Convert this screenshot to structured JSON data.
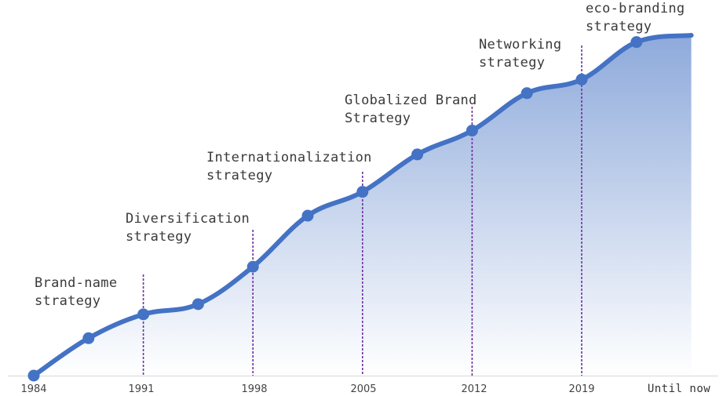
{
  "chart_data": {
    "type": "area",
    "title": "",
    "xlabel": "",
    "ylabel": "",
    "colors": {
      "line": "#4472c4",
      "fill_top": "#8eaadb",
      "fill_bottom": "#ffffff",
      "marker_line": "#7030a0",
      "axis": "#d9d9d9"
    },
    "x_ticks": [
      "1984",
      "1991",
      "1998",
      "2005",
      "2012",
      "2019",
      "Until now"
    ],
    "points": [
      {
        "x": 1984,
        "y": 0
      },
      {
        "x": 1987.5,
        "y": 11
      },
      {
        "x": 1991,
        "y": 18
      },
      {
        "x": 1994.5,
        "y": 21
      },
      {
        "x": 1998,
        "y": 32
      },
      {
        "x": 2001.5,
        "y": 47
      },
      {
        "x": 2005,
        "y": 54
      },
      {
        "x": 2008.5,
        "y": 65
      },
      {
        "x": 2012,
        "y": 72
      },
      {
        "x": 2015.5,
        "y": 83
      },
      {
        "x": 2019,
        "y": 87
      },
      {
        "x": 2022.5,
        "y": 98
      }
    ],
    "end_point": {
      "x": 2026,
      "y": 100
    },
    "stages": [
      {
        "year": 1991,
        "label_lines": [
          "Brand-name",
          "strategy"
        ]
      },
      {
        "year": 1998,
        "label_lines": [
          "Diversification",
          "strategy"
        ]
      },
      {
        "year": 2005,
        "label_lines": [
          "Internationalization",
          "strategy"
        ]
      },
      {
        "year": 2012,
        "label_lines": [
          "Globalized Brand",
          "Strategy"
        ]
      },
      {
        "year": 2019,
        "label_lines": [
          "Networking",
          "strategy"
        ]
      },
      {
        "year": 2026,
        "label_lines": [
          "eco-branding",
          "strategy"
        ]
      }
    ]
  }
}
